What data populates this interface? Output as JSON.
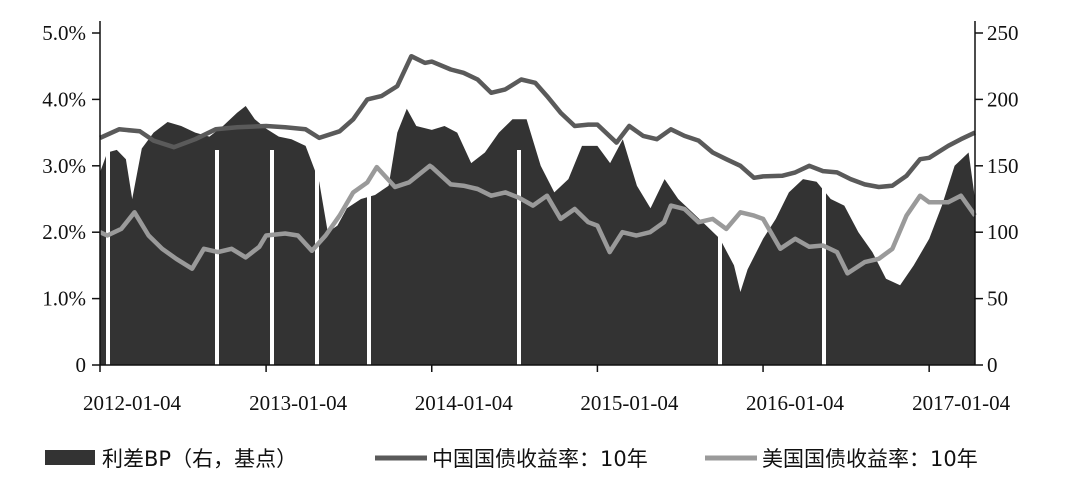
{
  "chart_data": {
    "type": "area+line",
    "title": "",
    "xlabel": "",
    "ylabel_left": "",
    "ylabel_right": "",
    "x_start": "2012-01-04",
    "x_end": "2017-04-15",
    "xticks": [
      "2012-01-04",
      "2013-01-04",
      "2014-01-04",
      "2015-01-04",
      "2016-01-04",
      "2017-01-04"
    ],
    "left_axis": {
      "min": 0,
      "max": 5.0,
      "ticks": [
        0,
        1.0,
        2.0,
        3.0,
        4.0,
        5.0
      ],
      "tick_labels": [
        "0",
        "1.0%",
        "2.0%",
        "3.0%",
        "4.0%",
        "5.0%"
      ]
    },
    "right_axis": {
      "min": 0,
      "max": 250,
      "ticks": [
        0,
        50,
        100,
        150,
        200,
        250
      ],
      "tick_labels": [
        "0",
        "50",
        "100",
        "150",
        "200",
        "250"
      ]
    },
    "legend_position": "bottom",
    "series": [
      {
        "name": "利差BP（右，基点）",
        "kind": "area",
        "axis": "right",
        "color": "#333333",
        "points": [
          [
            "2012-01-04",
            145
          ],
          [
            "2012-01-20",
            160
          ],
          [
            "2012-02-10",
            162
          ],
          [
            "2012-03-01",
            155
          ],
          [
            "2012-03-15",
            125
          ],
          [
            "2012-04-05",
            163
          ],
          [
            "2012-05-01",
            175
          ],
          [
            "2012-06-01",
            183
          ],
          [
            "2012-07-01",
            180
          ],
          [
            "2012-08-01",
            175
          ],
          [
            "2012-09-01",
            172
          ],
          [
            "2012-10-01",
            180
          ],
          [
            "2012-11-01",
            190
          ],
          [
            "2012-11-20",
            195
          ],
          [
            "2012-12-10",
            185
          ],
          [
            "2013-01-04",
            178
          ],
          [
            "2013-02-01",
            172
          ],
          [
            "2013-03-01",
            170
          ],
          [
            "2013-04-01",
            165
          ],
          [
            "2013-05-01",
            138
          ],
          [
            "2013-05-20",
            100
          ],
          [
            "2013-06-10",
            105
          ],
          [
            "2013-07-01",
            118
          ],
          [
            "2013-08-01",
            125
          ],
          [
            "2013-09-01",
            128
          ],
          [
            "2013-10-01",
            135
          ],
          [
            "2013-10-20",
            175
          ],
          [
            "2013-11-10",
            193
          ],
          [
            "2013-12-01",
            180
          ],
          [
            "2014-01-04",
            177
          ],
          [
            "2014-02-01",
            180
          ],
          [
            "2014-03-01",
            175
          ],
          [
            "2014-04-01",
            152
          ],
          [
            "2014-05-01",
            160
          ],
          [
            "2014-06-01",
            175
          ],
          [
            "2014-07-01",
            185
          ],
          [
            "2014-08-01",
            185
          ],
          [
            "2014-09-01",
            150
          ],
          [
            "2014-10-01",
            130
          ],
          [
            "2014-11-01",
            140
          ],
          [
            "2014-12-01",
            165
          ],
          [
            "2015-01-04",
            165
          ],
          [
            "2015-02-01",
            152
          ],
          [
            "2015-03-01",
            170
          ],
          [
            "2015-04-01",
            135
          ],
          [
            "2015-05-01",
            118
          ],
          [
            "2015-06-01",
            140
          ],
          [
            "2015-07-01",
            125
          ],
          [
            "2015-08-01",
            115
          ],
          [
            "2015-09-01",
            105
          ],
          [
            "2015-10-01",
            95
          ],
          [
            "2015-11-01",
            75
          ],
          [
            "2015-11-15",
            55
          ],
          [
            "2015-12-01",
            72
          ],
          [
            "2016-01-04",
            95
          ],
          [
            "2016-02-01",
            110
          ],
          [
            "2016-03-01",
            130
          ],
          [
            "2016-04-01",
            140
          ],
          [
            "2016-05-01",
            138
          ],
          [
            "2016-06-01",
            125
          ],
          [
            "2016-07-01",
            120
          ],
          [
            "2016-08-01",
            100
          ],
          [
            "2016-09-01",
            85
          ],
          [
            "2016-10-01",
            65
          ],
          [
            "2016-11-01",
            60
          ],
          [
            "2016-12-01",
            75
          ],
          [
            "2017-01-04",
            95
          ],
          [
            "2017-02-01",
            120
          ],
          [
            "2017-03-01",
            150
          ],
          [
            "2017-04-01",
            160
          ],
          [
            "2017-04-15",
            125
          ]
        ]
      },
      {
        "name": "中国国债收益率：10年",
        "kind": "line",
        "axis": "left",
        "color": "#5a5a5a",
        "points": [
          [
            "2012-01-04",
            3.42
          ],
          [
            "2012-02-15",
            3.55
          ],
          [
            "2012-04-01",
            3.52
          ],
          [
            "2012-05-01",
            3.38
          ],
          [
            "2012-06-15",
            3.28
          ],
          [
            "2012-08-01",
            3.4
          ],
          [
            "2012-09-15",
            3.55
          ],
          [
            "2012-11-01",
            3.58
          ],
          [
            "2013-01-04",
            3.6
          ],
          [
            "2013-02-15",
            3.58
          ],
          [
            "2013-04-01",
            3.55
          ],
          [
            "2013-05-01",
            3.42
          ],
          [
            "2013-06-15",
            3.52
          ],
          [
            "2013-07-15",
            3.7
          ],
          [
            "2013-08-15",
            4.0
          ],
          [
            "2013-09-15",
            4.05
          ],
          [
            "2013-10-20",
            4.2
          ],
          [
            "2013-11-20",
            4.65
          ],
          [
            "2013-12-20",
            4.55
          ],
          [
            "2014-01-04",
            4.57
          ],
          [
            "2014-02-15",
            4.45
          ],
          [
            "2014-03-15",
            4.4
          ],
          [
            "2014-04-15",
            4.3
          ],
          [
            "2014-05-15",
            4.1
          ],
          [
            "2014-06-15",
            4.15
          ],
          [
            "2014-07-20",
            4.3
          ],
          [
            "2014-08-20",
            4.25
          ],
          [
            "2014-09-15",
            4.05
          ],
          [
            "2014-10-15",
            3.8
          ],
          [
            "2014-11-15",
            3.6
          ],
          [
            "2014-12-15",
            3.62
          ],
          [
            "2015-01-04",
            3.62
          ],
          [
            "2015-02-15",
            3.35
          ],
          [
            "2015-03-15",
            3.6
          ],
          [
            "2015-04-15",
            3.45
          ],
          [
            "2015-05-15",
            3.4
          ],
          [
            "2015-06-15",
            3.55
          ],
          [
            "2015-07-15",
            3.45
          ],
          [
            "2015-08-15",
            3.38
          ],
          [
            "2015-09-15",
            3.2
          ],
          [
            "2015-10-15",
            3.1
          ],
          [
            "2015-11-15",
            3.0
          ],
          [
            "2015-12-15",
            2.82
          ],
          [
            "2016-01-04",
            2.84
          ],
          [
            "2016-02-15",
            2.85
          ],
          [
            "2016-03-15",
            2.9
          ],
          [
            "2016-04-15",
            3.0
          ],
          [
            "2016-05-15",
            2.92
          ],
          [
            "2016-06-15",
            2.9
          ],
          [
            "2016-07-15",
            2.8
          ],
          [
            "2016-08-15",
            2.72
          ],
          [
            "2016-09-15",
            2.68
          ],
          [
            "2016-10-15",
            2.7
          ],
          [
            "2016-11-15",
            2.85
          ],
          [
            "2016-12-15",
            3.1
          ],
          [
            "2017-01-04",
            3.12
          ],
          [
            "2017-02-15",
            3.3
          ],
          [
            "2017-03-15",
            3.4
          ],
          [
            "2017-04-15",
            3.5
          ]
        ]
      },
      {
        "name": "美国国债收益率：10年",
        "kind": "line",
        "axis": "left",
        "color": "#9a9a9a",
        "points": [
          [
            "2012-01-04",
            2.0
          ],
          [
            "2012-01-20",
            1.95
          ],
          [
            "2012-02-20",
            2.05
          ],
          [
            "2012-03-20",
            2.3
          ],
          [
            "2012-04-20",
            1.95
          ],
          [
            "2012-05-20",
            1.75
          ],
          [
            "2012-06-20",
            1.6
          ],
          [
            "2012-07-25",
            1.45
          ],
          [
            "2012-08-20",
            1.75
          ],
          [
            "2012-09-20",
            1.7
          ],
          [
            "2012-10-20",
            1.75
          ],
          [
            "2012-11-20",
            1.62
          ],
          [
            "2012-12-20",
            1.78
          ],
          [
            "2013-01-04",
            1.95
          ],
          [
            "2013-02-15",
            1.98
          ],
          [
            "2013-03-15",
            1.95
          ],
          [
            "2013-04-15",
            1.72
          ],
          [
            "2013-05-15",
            1.95
          ],
          [
            "2013-06-15",
            2.25
          ],
          [
            "2013-07-15",
            2.6
          ],
          [
            "2013-08-15",
            2.75
          ],
          [
            "2013-09-05",
            2.98
          ],
          [
            "2013-10-15",
            2.68
          ],
          [
            "2013-11-15",
            2.75
          ],
          [
            "2013-12-31",
            3.0
          ],
          [
            "2014-01-04",
            2.98
          ],
          [
            "2014-02-15",
            2.72
          ],
          [
            "2014-03-15",
            2.7
          ],
          [
            "2014-04-15",
            2.65
          ],
          [
            "2014-05-15",
            2.55
          ],
          [
            "2014-06-15",
            2.6
          ],
          [
            "2014-07-15",
            2.52
          ],
          [
            "2014-08-15",
            2.4
          ],
          [
            "2014-09-15",
            2.55
          ],
          [
            "2014-10-15",
            2.2
          ],
          [
            "2014-11-15",
            2.35
          ],
          [
            "2014-12-15",
            2.15
          ],
          [
            "2015-01-04",
            2.1
          ],
          [
            "2015-01-31",
            1.7
          ],
          [
            "2015-02-28",
            2.0
          ],
          [
            "2015-03-31",
            1.95
          ],
          [
            "2015-04-30",
            2.0
          ],
          [
            "2015-05-31",
            2.15
          ],
          [
            "2015-06-15",
            2.4
          ],
          [
            "2015-07-15",
            2.35
          ],
          [
            "2015-08-15",
            2.15
          ],
          [
            "2015-09-15",
            2.2
          ],
          [
            "2015-10-15",
            2.05
          ],
          [
            "2015-11-15",
            2.3
          ],
          [
            "2015-12-15",
            2.25
          ],
          [
            "2016-01-04",
            2.2
          ],
          [
            "2016-02-11",
            1.75
          ],
          [
            "2016-03-15",
            1.9
          ],
          [
            "2016-04-15",
            1.78
          ],
          [
            "2016-05-15",
            1.8
          ],
          [
            "2016-06-15",
            1.7
          ],
          [
            "2016-07-08",
            1.38
          ],
          [
            "2016-08-15",
            1.55
          ],
          [
            "2016-09-15",
            1.6
          ],
          [
            "2016-10-15",
            1.75
          ],
          [
            "2016-11-15",
            2.25
          ],
          [
            "2016-12-15",
            2.55
          ],
          [
            "2017-01-04",
            2.45
          ],
          [
            "2017-02-15",
            2.45
          ],
          [
            "2017-03-15",
            2.55
          ],
          [
            "2017-04-15",
            2.25
          ]
        ]
      }
    ]
  }
}
